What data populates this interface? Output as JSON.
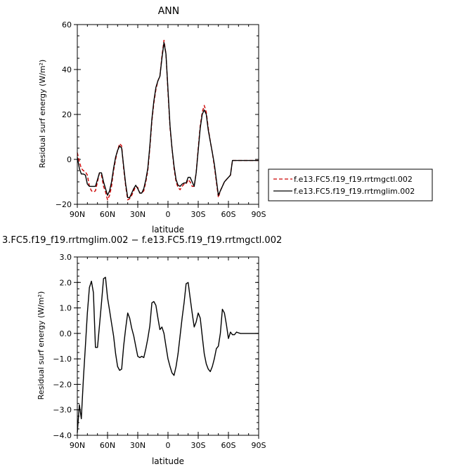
{
  "chart_data": [
    {
      "type": "line",
      "title": "ANN",
      "xlabel": "latitude",
      "ylabel": "Residual surf energy (W/m²)",
      "xlim": [
        90,
        -90
      ],
      "ylim": [
        -20,
        60
      ],
      "x_ticks": [
        90,
        60,
        30,
        0,
        -30,
        -60,
        -90
      ],
      "x_tick_labels": [
        "90N",
        "60N",
        "30N",
        "0",
        "30S",
        "60S",
        "90S"
      ],
      "y_ticks": [
        -20,
        0,
        20,
        40,
        60
      ],
      "y_tick_labels": [
        "−20",
        "0",
        "20",
        "40",
        "60"
      ],
      "legend_position": "right",
      "series": [
        {
          "name": "f.e13.FC5.f19_f19.rrtmgctl.002",
          "color": "#cc0000",
          "dash": "dashed",
          "x": [
            90,
            88,
            86,
            84,
            82,
            80,
            78,
            76,
            74,
            72,
            70,
            68,
            66,
            64,
            62,
            60,
            58,
            56,
            54,
            52,
            50,
            48,
            46,
            44,
            42,
            40,
            38,
            36,
            34,
            32,
            30,
            28,
            26,
            24,
            22,
            20,
            18,
            16,
            14,
            12,
            10,
            8,
            6,
            4,
            2,
            0,
            -2,
            -4,
            -6,
            -8,
            -10,
            -12,
            -14,
            -16,
            -18,
            -20,
            -22,
            -24,
            -26,
            -28,
            -30,
            -32,
            -34,
            -36,
            -38,
            -40,
            -42,
            -44,
            -46,
            -48,
            -50,
            -52,
            -54,
            -56,
            -58,
            -60,
            -62,
            -64,
            -66,
            -68,
            -70,
            -72,
            -74,
            -76,
            -78,
            -80,
            -82,
            -84,
            -86,
            -88,
            -90
          ],
          "values": [
            3,
            -1,
            -4,
            -5,
            -5.5,
            -7,
            -12,
            -14,
            -14.5,
            -14,
            -10,
            -6,
            -7,
            -12,
            -14.5,
            -18,
            -16,
            -12,
            -5,
            0,
            4,
            7,
            6,
            -4,
            -12,
            -18,
            -17.5,
            -16,
            -14,
            -12,
            -12.5,
            -15,
            -15,
            -14,
            -10,
            -5,
            5,
            17,
            25,
            31,
            35,
            37,
            46,
            53,
            47,
            30,
            14,
            5,
            -4,
            -10,
            -12.5,
            -13.5,
            -12,
            -11,
            -11,
            -9,
            -10,
            -12,
            -12,
            -6,
            5,
            15,
            21,
            24,
            21,
            14,
            8,
            3,
            -3,
            -10,
            -17,
            -14,
            -12,
            -10,
            -9,
            -8,
            -7,
            -0.5,
            -0.5,
            -0.5,
            -0.5,
            -0.5,
            -0.5,
            -0.5,
            -0.5,
            -0.5,
            -0.5,
            -0.5,
            -0.5,
            -0.5,
            -0.5
          ]
        },
        {
          "name": "f.e13.FC5.f19_f19.rrtmglim.002",
          "color": "#000000",
          "dash": "solid",
          "x": [
            90,
            88,
            86,
            84,
            82,
            80,
            78,
            76,
            74,
            72,
            70,
            68,
            66,
            64,
            62,
            60,
            58,
            56,
            54,
            52,
            50,
            48,
            46,
            44,
            42,
            40,
            38,
            36,
            34,
            32,
            30,
            28,
            26,
            24,
            22,
            20,
            18,
            16,
            14,
            12,
            10,
            8,
            6,
            4,
            2,
            0,
            -2,
            -4,
            -6,
            -8,
            -10,
            -12,
            -14,
            -16,
            -18,
            -20,
            -22,
            -24,
            -26,
            -28,
            -30,
            -32,
            -34,
            -36,
            -38,
            -40,
            -42,
            -44,
            -46,
            -48,
            -50,
            -52,
            -54,
            -56,
            -58,
            -60,
            -62,
            -64,
            -66,
            -68,
            -70,
            -72,
            -74,
            -76,
            -78,
            -80,
            -82,
            -84,
            -86,
            -88,
            -90
          ],
          "values": [
            1,
            -4,
            -6.5,
            -6.5,
            -7,
            -11,
            -12,
            -12,
            -12,
            -12,
            -9,
            -6,
            -6,
            -10,
            -13,
            -16,
            -14,
            -10,
            -4,
            1,
            4,
            6,
            5,
            -3,
            -11,
            -17,
            -17,
            -15,
            -13,
            -11.5,
            -13,
            -15,
            -15,
            -13,
            -9,
            -4,
            6,
            18,
            26,
            32,
            35,
            37,
            45,
            52,
            47,
            31,
            15,
            5,
            -3,
            -9,
            -11.5,
            -12,
            -11,
            -10.5,
            -10.5,
            -8,
            -8,
            -10,
            -12,
            -6,
            4,
            14,
            20,
            22,
            20,
            13,
            8,
            3,
            -2,
            -9,
            -16,
            -14,
            -12,
            -10,
            -9,
            -8,
            -7,
            -0.5,
            -0.5,
            -0.5,
            -0.5,
            -0.5,
            -0.5,
            -0.5,
            -0.5,
            -0.5,
            -0.5,
            -0.5,
            -0.5,
            -0.5,
            -0.5
          ]
        }
      ]
    },
    {
      "type": "line",
      "title": "3.FC5.f19_f19.rrtmglim.002 − f.e13.FC5.f19_f19.rrtmgctl.002",
      "xlabel": "latitude",
      "ylabel": "Residual surf energy (W/m²)",
      "xlim": [
        90,
        -90
      ],
      "ylim": [
        -4,
        3
      ],
      "x_ticks": [
        90,
        60,
        30,
        0,
        -30,
        -60,
        -90
      ],
      "x_tick_labels": [
        "90N",
        "60N",
        "30N",
        "0",
        "30S",
        "60S",
        "90S"
      ],
      "y_ticks": [
        -4,
        -3,
        -2,
        -1,
        0,
        1,
        2,
        3
      ],
      "y_tick_labels": [
        "−4.0",
        "−3.0",
        "−2.0",
        "−1.0",
        "0.0",
        "1.0",
        "2.0",
        "3.0"
      ],
      "series": [
        {
          "color": "#000000",
          "x": [
            90,
            88,
            86,
            84,
            82,
            80,
            78,
            76,
            74,
            72,
            70,
            68,
            66,
            64,
            62,
            60,
            58,
            56,
            54,
            52,
            50,
            48,
            46,
            44,
            42,
            40,
            38,
            36,
            34,
            32,
            30,
            28,
            26,
            24,
            22,
            20,
            18,
            16,
            14,
            12,
            10,
            8,
            6,
            4,
            2,
            0,
            -2,
            -4,
            -6,
            -8,
            -10,
            -12,
            -14,
            -16,
            -18,
            -20,
            -22,
            -24,
            -26,
            -28,
            -30,
            -32,
            -34,
            -36,
            -38,
            -40,
            -42,
            -44,
            -46,
            -48,
            -50,
            -52,
            -54,
            -56,
            -58,
            -60,
            -62,
            -64,
            -66,
            -68,
            -70,
            -72,
            -74,
            -76,
            -78,
            -80,
            -82,
            -84,
            -86,
            -88,
            -90
          ],
          "values": [
            -3.9,
            -2.8,
            -3.35,
            -1.8,
            -0.5,
            0.8,
            1.8,
            2.05,
            1.6,
            -0.55,
            -0.55,
            0.3,
            1.2,
            2.15,
            2.2,
            1.4,
            0.9,
            0.4,
            -0.1,
            -0.8,
            -1.3,
            -1.45,
            -1.4,
            -0.5,
            0.2,
            0.8,
            0.6,
            0.2,
            -0.1,
            -0.5,
            -0.9,
            -0.95,
            -0.9,
            -0.95,
            -0.6,
            -0.2,
            0.3,
            1.2,
            1.25,
            1.1,
            0.6,
            0.15,
            0.25,
            0.0,
            -0.5,
            -1.0,
            -1.3,
            -1.55,
            -1.65,
            -1.3,
            -0.8,
            -0.1,
            0.6,
            1.2,
            1.95,
            2.0,
            1.4,
            0.8,
            0.25,
            0.45,
            0.8,
            0.6,
            -0.1,
            -0.8,
            -1.2,
            -1.4,
            -1.5,
            -1.3,
            -1.0,
            -0.6,
            -0.5,
            0.0,
            0.95,
            0.8,
            0.35,
            -0.2,
            0.05,
            -0.05,
            -0.05,
            0.05,
            0.02,
            0.0,
            0.0,
            0.0,
            0.0,
            0.0,
            0.0,
            0.0,
            0.0,
            0.0,
            0.0
          ]
        }
      ]
    }
  ]
}
